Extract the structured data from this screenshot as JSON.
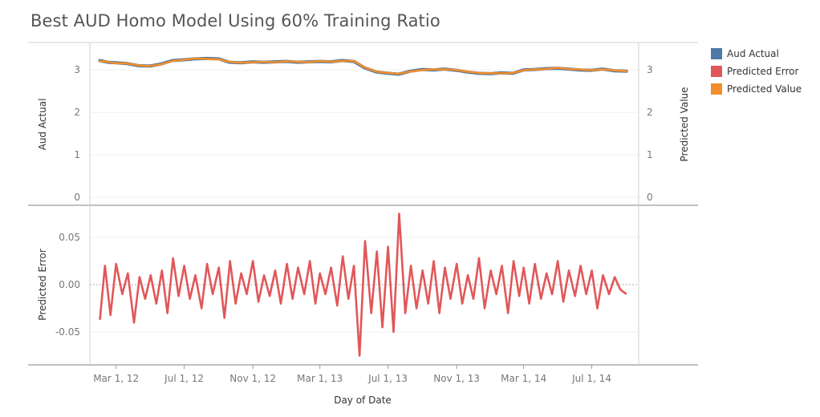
{
  "chart_data": {
    "type": "line",
    "title": "Best AUD Homo Model Using 60% Training Ratio",
    "xlabel": "Day of Date",
    "x_ticks": [
      "Mar 1, 12",
      "Jul 1, 12",
      "Nov 1, 12",
      "Mar 1, 13",
      "Jul 1, 13",
      "Nov 1, 13",
      "Mar 1, 14",
      "Jul 1, 14"
    ],
    "top_panel": {
      "ylabel_left": "Aud Actual",
      "ylabel_right": "Predicted Value",
      "ylim": [
        0,
        3.4
      ],
      "y_ticks": [
        "0",
        "1",
        "2",
        "3"
      ],
      "series": [
        {
          "name": "Aud Actual",
          "color": "#4e79a7",
          "x": [
            "2012-02-01",
            "2012-02-15",
            "2012-03-01",
            "2012-03-20",
            "2012-04-10",
            "2012-05-01",
            "2012-05-20",
            "2012-06-10",
            "2012-07-01",
            "2012-07-20",
            "2012-08-10",
            "2012-09-01",
            "2012-09-20",
            "2012-10-10",
            "2012-11-01",
            "2012-11-20",
            "2012-12-10",
            "2013-01-01",
            "2013-01-20",
            "2013-02-10",
            "2013-03-01",
            "2013-03-20",
            "2013-04-10",
            "2013-05-01",
            "2013-05-20",
            "2013-06-10",
            "2013-07-01",
            "2013-07-20",
            "2013-08-10",
            "2013-09-01",
            "2013-09-20",
            "2013-10-10",
            "2013-11-01",
            "2013-11-20",
            "2013-12-10",
            "2014-01-01",
            "2014-01-20",
            "2014-02-10",
            "2014-03-01",
            "2014-03-20",
            "2014-04-10",
            "2014-05-01",
            "2014-05-20",
            "2014-06-10",
            "2014-07-01",
            "2014-07-20",
            "2014-08-10",
            "2014-09-01"
          ],
          "values": [
            3.22,
            3.18,
            3.17,
            3.15,
            3.1,
            3.09,
            3.14,
            3.22,
            3.24,
            3.26,
            3.27,
            3.26,
            3.18,
            3.17,
            3.19,
            3.18,
            3.19,
            3.2,
            3.18,
            3.19,
            3.2,
            3.19,
            3.22,
            3.2,
            3.05,
            2.95,
            2.92,
            2.9,
            2.97,
            3.01,
            3.0,
            3.02,
            2.99,
            2.95,
            2.92,
            2.91,
            2.93,
            2.92,
            3.0,
            3.01,
            3.03,
            3.04,
            3.02,
            3.0,
            2.99,
            3.02,
            2.98,
            2.97
          ]
        },
        {
          "name": "Predicted Value",
          "color": "#f28e2b",
          "x": [
            "2012-02-01",
            "2012-02-15",
            "2012-03-01",
            "2012-03-20",
            "2012-04-10",
            "2012-05-01",
            "2012-05-20",
            "2012-06-10",
            "2012-07-01",
            "2012-07-20",
            "2012-08-10",
            "2012-09-01",
            "2012-09-20",
            "2012-10-10",
            "2012-11-01",
            "2012-11-20",
            "2012-12-10",
            "2013-01-01",
            "2013-01-20",
            "2013-02-10",
            "2013-03-01",
            "2013-03-20",
            "2013-04-10",
            "2013-05-01",
            "2013-05-20",
            "2013-06-10",
            "2013-07-01",
            "2013-07-20",
            "2013-08-10",
            "2013-09-01",
            "2013-09-20",
            "2013-10-10",
            "2013-11-01",
            "2013-11-20",
            "2013-12-10",
            "2014-01-01",
            "2014-01-20",
            "2014-02-10",
            "2014-03-01",
            "2014-03-20",
            "2014-04-10",
            "2014-05-01",
            "2014-05-20",
            "2014-06-10",
            "2014-07-01",
            "2014-07-20",
            "2014-08-10",
            "2014-09-01"
          ],
          "values": [
            3.21,
            3.19,
            3.16,
            3.15,
            3.11,
            3.09,
            3.13,
            3.21,
            3.24,
            3.27,
            3.26,
            3.25,
            3.19,
            3.17,
            3.18,
            3.19,
            3.18,
            3.2,
            3.19,
            3.18,
            3.21,
            3.19,
            3.21,
            3.21,
            3.06,
            2.96,
            2.93,
            2.91,
            2.96,
            3.0,
            3.01,
            3.01,
            3.0,
            2.96,
            2.93,
            2.92,
            2.92,
            2.93,
            2.99,
            3.01,
            3.02,
            3.05,
            3.02,
            3.01,
            2.99,
            3.01,
            2.99,
            2.97
          ]
        }
      ]
    },
    "bottom_panel": {
      "ylabel": "Predicted Error",
      "ylim": [
        -0.077,
        0.077
      ],
      "y_ticks": [
        "-0.05",
        "0.00",
        "0.05"
      ],
      "series": [
        {
          "name": "Predicted Error",
          "color": "#e15759",
          "x": [
            "2012-02-01",
            "2012-02-10",
            "2012-02-20",
            "2012-03-01",
            "2012-03-12",
            "2012-03-22",
            "2012-04-02",
            "2012-04-12",
            "2012-04-22",
            "2012-05-02",
            "2012-05-12",
            "2012-05-22",
            "2012-06-01",
            "2012-06-11",
            "2012-06-21",
            "2012-07-01",
            "2012-07-11",
            "2012-07-21",
            "2012-08-01",
            "2012-08-11",
            "2012-08-21",
            "2012-09-01",
            "2012-09-11",
            "2012-09-21",
            "2012-10-01",
            "2012-10-11",
            "2012-10-21",
            "2012-11-01",
            "2012-11-11",
            "2012-11-21",
            "2012-12-01",
            "2012-12-11",
            "2012-12-21",
            "2013-01-01",
            "2013-01-11",
            "2013-01-21",
            "2013-02-01",
            "2013-02-11",
            "2013-02-21",
            "2013-03-01",
            "2013-03-11",
            "2013-03-21",
            "2013-04-01",
            "2013-04-11",
            "2013-04-21",
            "2013-05-01",
            "2013-05-11",
            "2013-05-21",
            "2013-06-01",
            "2013-06-11",
            "2013-06-21",
            "2013-07-01",
            "2013-07-11",
            "2013-07-21",
            "2013-08-01",
            "2013-08-11",
            "2013-08-21",
            "2013-09-01",
            "2013-09-11",
            "2013-09-21",
            "2013-10-01",
            "2013-10-11",
            "2013-10-21",
            "2013-11-01",
            "2013-11-11",
            "2013-11-21",
            "2013-12-01",
            "2013-12-11",
            "2013-12-21",
            "2014-01-01",
            "2014-01-11",
            "2014-01-21",
            "2014-02-01",
            "2014-02-11",
            "2014-02-21",
            "2014-03-01",
            "2014-03-11",
            "2014-03-21",
            "2014-04-01",
            "2014-04-11",
            "2014-04-21",
            "2014-05-01",
            "2014-05-11",
            "2014-05-21",
            "2014-06-01",
            "2014-06-11",
            "2014-06-21",
            "2014-07-01",
            "2014-07-11",
            "2014-07-21",
            "2014-08-01",
            "2014-08-11",
            "2014-08-21",
            "2014-09-01"
          ],
          "values": [
            -0.037,
            0.02,
            -0.032,
            0.022,
            -0.01,
            0.012,
            -0.04,
            0.008,
            -0.015,
            0.01,
            -0.02,
            0.015,
            -0.03,
            0.028,
            -0.012,
            0.02,
            -0.015,
            0.01,
            -0.025,
            0.022,
            -0.01,
            0.018,
            -0.035,
            0.025,
            -0.02,
            0.012,
            -0.01,
            0.025,
            -0.018,
            0.01,
            -0.012,
            0.015,
            -0.02,
            0.022,
            -0.015,
            0.018,
            -0.01,
            0.025,
            -0.02,
            0.012,
            -0.01,
            0.018,
            -0.022,
            0.03,
            -0.015,
            0.02,
            -0.075,
            0.046,
            -0.03,
            0.035,
            -0.045,
            0.04,
            -0.05,
            0.075,
            -0.03,
            0.02,
            -0.025,
            0.015,
            -0.02,
            0.025,
            -0.03,
            0.018,
            -0.015,
            0.022,
            -0.02,
            0.01,
            -0.015,
            0.028,
            -0.025,
            0.015,
            -0.01,
            0.02,
            -0.03,
            0.025,
            -0.012,
            0.018,
            -0.02,
            0.022,
            -0.015,
            0.012,
            -0.01,
            0.025,
            -0.018,
            0.015,
            -0.012,
            0.02,
            -0.01,
            0.015,
            -0.025,
            0.01,
            -0.01,
            0.008,
            -0.005,
            -0.01
          ]
        }
      ]
    },
    "legend": [
      {
        "name": "Aud Actual",
        "color": "#4e79a7"
      },
      {
        "name": "Predicted Error",
        "color": "#e15759"
      },
      {
        "name": "Predicted Value",
        "color": "#f28e2b"
      }
    ],
    "legend_position": "top-right"
  }
}
